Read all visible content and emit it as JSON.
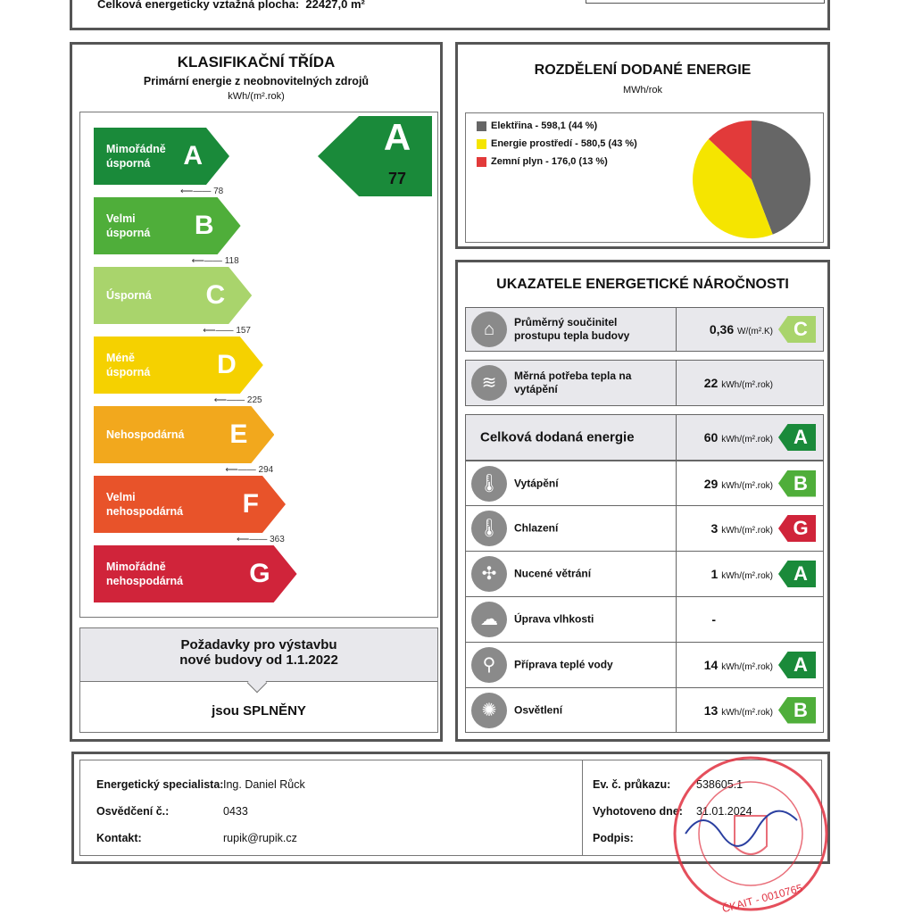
{
  "header": {
    "floor_area_label": "Celková energeticky vztažná plocha:",
    "floor_area_value": "22427,0 m²"
  },
  "classification": {
    "title": "KLASIFIKAČNÍ TŘÍDA",
    "subtitle": "Primární energie z neobnovitelných zdrojů",
    "unit": "kWh/(m².rok)",
    "result_class": "A",
    "result_value": "77",
    "result_color": "#1a8a3a",
    "classes": [
      {
        "letter": "A",
        "label": "Mimořádně úsporná",
        "color": "#1a8a3a",
        "threshold": "78"
      },
      {
        "letter": "B",
        "label": "Velmi úsporná",
        "color": "#4fae3a",
        "threshold": "118"
      },
      {
        "letter": "C",
        "label": "Úsporná",
        "color": "#a9d46c",
        "threshold": "157"
      },
      {
        "letter": "D",
        "label": "Méně úsporná",
        "color": "#f5d100",
        "threshold": "225"
      },
      {
        "letter": "E",
        "label": "Nehospodárná",
        "color": "#f2a81d",
        "threshold": "294"
      },
      {
        "letter": "F",
        "label": "Velmi nehospodárná",
        "color": "#e8532a",
        "threshold": "363"
      },
      {
        "letter": "G",
        "label": "Mimořádně nehospodárná",
        "color": "#d0243a",
        "threshold": ""
      }
    ],
    "requirements_title": "Požadavky pro výstavbu nové budovy od 1.1.2022",
    "requirements_result": "jsou SPLNĚNY"
  },
  "distribution": {
    "title": "ROZDĚLENÍ DODANÉ ENERGIE",
    "unit": "MWh/rok",
    "slices": [
      {
        "label": "Elektřina - 598,1 (44 %)",
        "value": 598.1,
        "color": "#666666"
      },
      {
        "label": "Energie prostředí - 580,5 (43 %)",
        "value": 580.5,
        "color": "#f5e500"
      },
      {
        "label": "Zemní plyn - 176,0 (13 %)",
        "value": 176.0,
        "color": "#e23a3a"
      }
    ]
  },
  "indicators": {
    "title": "UKAZATELE ENERGETICKÉ NÁROČNOSTI",
    "rows": [
      {
        "icon": "house-icon",
        "glyph": "⌂",
        "label": "Průměrný součinitel prostupu tepla budovy",
        "value": "0,36",
        "unit": "W/(m².K)",
        "class": "C",
        "color": "#a9d46c"
      },
      {
        "icon": "heat-demand-icon",
        "glyph": "≋",
        "label": "Měrná potřeba tepla na vytápění",
        "value": "22",
        "unit": "kWh/(m².rok)",
        "class": "",
        "color": ""
      },
      {
        "icon": "",
        "glyph": "",
        "label": "Celková dodaná energie",
        "value": "60",
        "unit": "kWh/(m².rok)",
        "class": "A",
        "color": "#1a8a3a"
      },
      {
        "icon": "thermometer-heating-icon",
        "glyph": "🌡",
        "label": "Vytápění",
        "value": "29",
        "unit": "kWh/(m².rok)",
        "class": "B",
        "color": "#4fae3a"
      },
      {
        "icon": "thermometer-cooling-icon",
        "glyph": "🌡",
        "label": "Chlazení",
        "value": "3",
        "unit": "kWh/(m².rok)",
        "class": "G",
        "color": "#d0243a"
      },
      {
        "icon": "fan-icon",
        "glyph": "✣",
        "label": "Nucené větrání",
        "value": "1",
        "unit": "kWh/(m².rok)",
        "class": "A",
        "color": "#1a8a3a"
      },
      {
        "icon": "humidity-icon",
        "glyph": "☁",
        "label": "Úprava vlhkosti",
        "value": "-",
        "unit": "",
        "class": "",
        "color": ""
      },
      {
        "icon": "tap-icon",
        "glyph": "⚲",
        "label": "Příprava teplé vody",
        "value": "14",
        "unit": "kWh/(m².rok)",
        "class": "A",
        "color": "#1a8a3a"
      },
      {
        "icon": "lightbulb-icon",
        "glyph": "✺",
        "label": "Osvětlení",
        "value": "13",
        "unit": "kWh/(m².rok)",
        "class": "B",
        "color": "#4fae3a"
      }
    ]
  },
  "footer": {
    "specialist_label": "Energetický specialista:",
    "specialist": "Ing. Daniel Růck",
    "cert_label": "Osvědčení č.:",
    "cert": "0433",
    "contact_label": "Kontakt:",
    "contact": "rupik@rupik.cz",
    "ev_label": "Ev. č. průkazu:",
    "ev": "538605.1",
    "date_label": "Vyhotoveno dne:",
    "date": "31.01.2024",
    "sign_label": "Podpis:",
    "stamp_text": "Ing. DANIEL RŮCK · autorizovaný technik pro techniku prostředí staveb · ČKAIT - 0010765"
  }
}
